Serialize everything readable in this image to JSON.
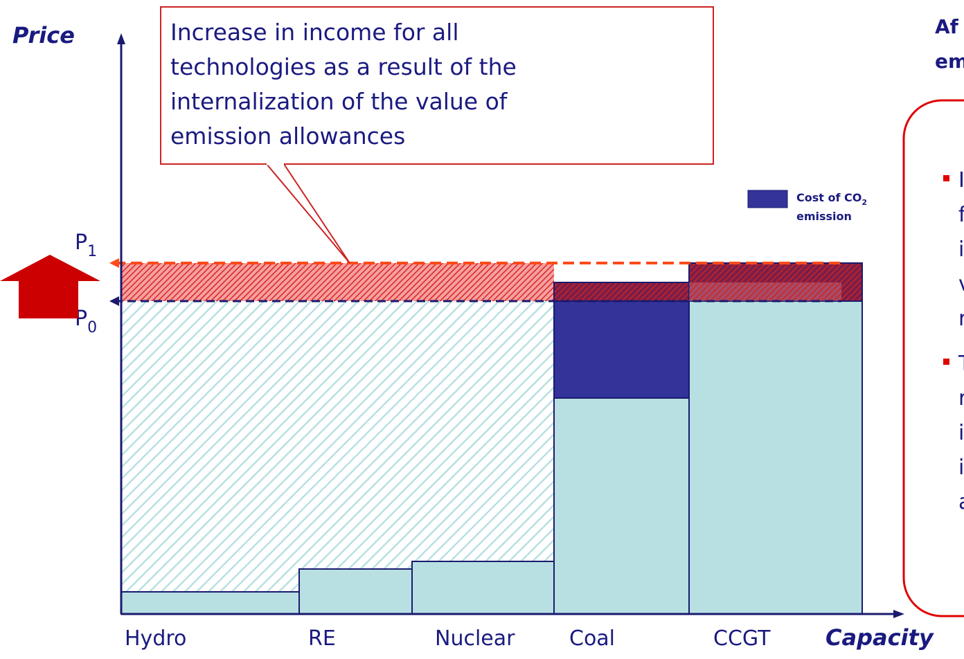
{
  "y_label": "Price",
  "x_label": "Capacity",
  "price_levels": [
    {
      "label": "P",
      "sub": "1"
    },
    {
      "label": "P",
      "sub": "0"
    }
  ],
  "callout": [
    "Increase in income for all",
    "technologies as a result of the",
    "internalization of the value of",
    "emission allowances"
  ],
  "legend": {
    "label": "Cost of CO",
    "sub": "2",
    "line2": "emission"
  },
  "categories": [
    "Hydro",
    "RE",
    "Nuclear",
    "Coal",
    "CCGT"
  ],
  "side_panel": {
    "heading": [
      "Af",
      "em"
    ],
    "bullets": [
      [
        "I",
        "f",
        "i",
        "v",
        "r"
      ],
      [
        "T",
        "r",
        "i",
        "i",
        "a"
      ]
    ]
  }
}
